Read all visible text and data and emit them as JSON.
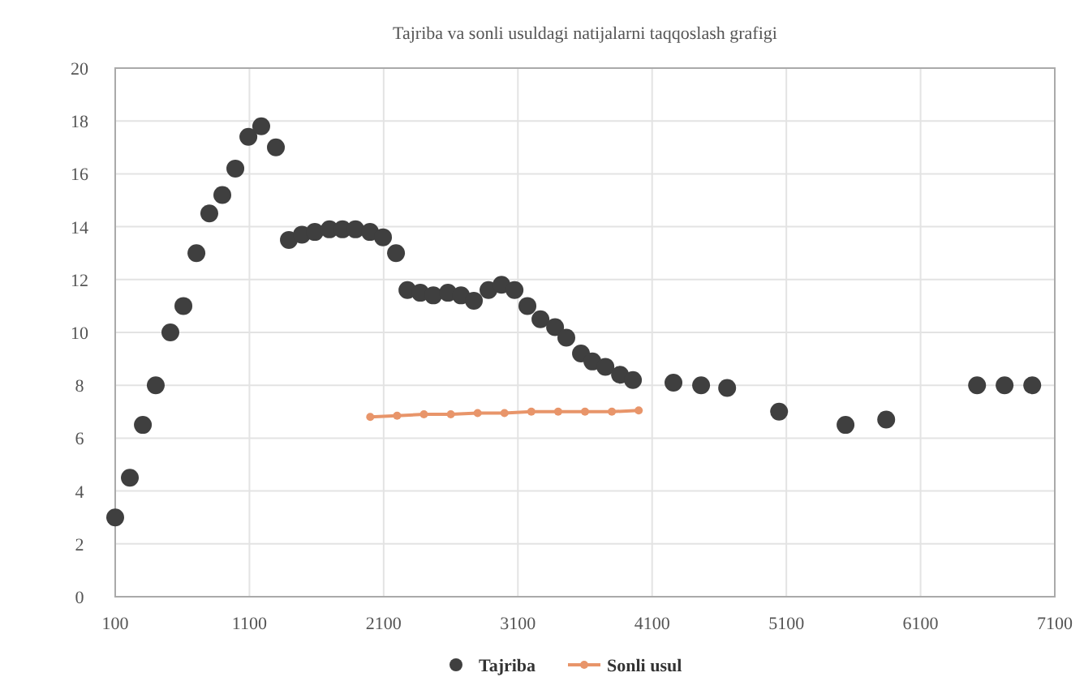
{
  "chart_data": {
    "type": "scatter",
    "title": "Tajriba va sonli usuldagi natijalarni taqqoslash grafigi",
    "xlim": [
      100,
      7100
    ],
    "xticks": [
      100,
      1100,
      2100,
      3100,
      4100,
      5100,
      6100,
      7100
    ],
    "ylim": [
      0,
      20
    ],
    "yticks": [
      0,
      2,
      4,
      6,
      8,
      10,
      12,
      14,
      16,
      18,
      20
    ],
    "grid": true,
    "legend": "bottom",
    "series": [
      {
        "name": "Tajriba",
        "marker": "circle",
        "color": "#3f3f3f",
        "x": [
          100,
          209,
          306,
          402,
          511,
          608,
          705,
          801,
          898,
          995,
          1092,
          1188,
          1297,
          1394,
          1491,
          1587,
          1696,
          1793,
          1890,
          1998,
          2095,
          2192,
          2277,
          2373,
          2470,
          2579,
          2676,
          2772,
          2881,
          2978,
          3075,
          3171,
          3268,
          3377,
          3461,
          3570,
          3655,
          3752,
          3861,
          3957,
          4259,
          4465,
          4659,
          5046,
          5541,
          5844,
          6521,
          6726,
          6932
        ],
        "values": [
          3.0,
          4.5,
          6.5,
          8.0,
          10.0,
          11.0,
          13.0,
          14.5,
          15.2,
          16.2,
          17.4,
          17.8,
          17.0,
          13.5,
          13.7,
          13.8,
          13.9,
          13.9,
          13.9,
          13.8,
          13.6,
          13.0,
          11.6,
          11.5,
          11.4,
          11.5,
          11.4,
          11.2,
          11.6,
          11.8,
          11.6,
          11.0,
          10.5,
          10.2,
          9.8,
          9.2,
          8.9,
          8.7,
          8.4,
          8.2,
          8.1,
          8.0,
          7.9,
          7.0,
          6.5,
          6.7,
          8.0,
          8.0,
          8.0
        ]
      },
      {
        "name": "Sonli usul",
        "type": "line",
        "marker": "circle",
        "line_style": "solid",
        "color": "#e8956a",
        "x": [
          2000,
          2200,
          2400,
          2600,
          2800,
          3000,
          3200,
          3400,
          3600,
          3800,
          4000
        ],
        "values": [
          6.8,
          6.85,
          6.9,
          6.9,
          6.95,
          6.95,
          7.0,
          7.0,
          7.0,
          7.0,
          7.05
        ]
      }
    ]
  }
}
